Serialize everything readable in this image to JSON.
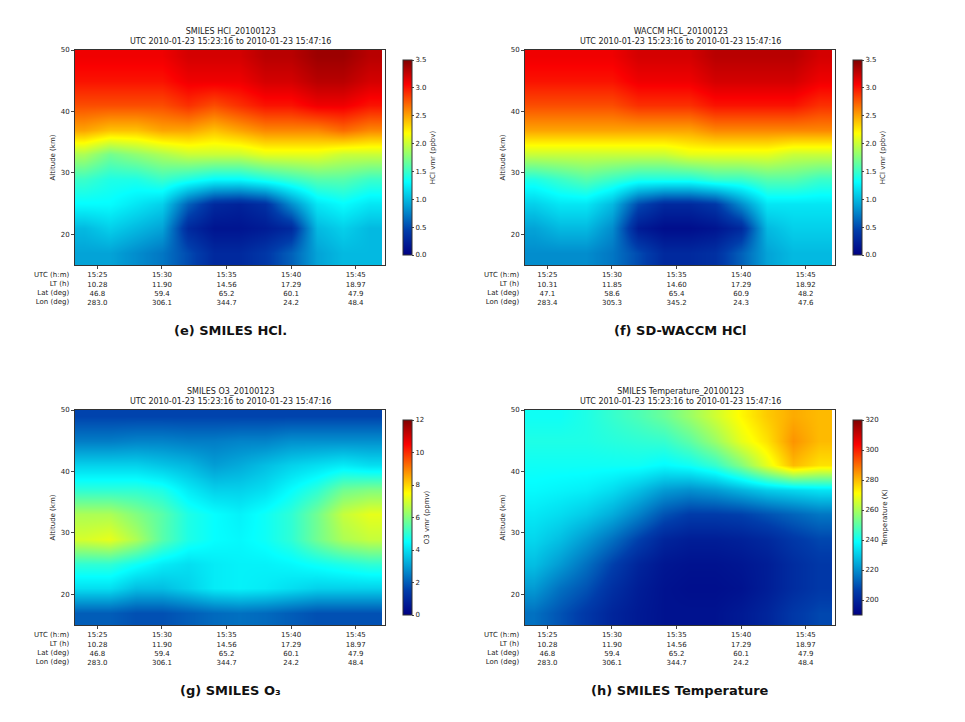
{
  "chart_data": [
    {
      "type": "heatmap",
      "title": "SMILES HCl_20100123",
      "subtitle": "UTC 2010-01-23 15:23:16 to 2010-01-23 15:47:16",
      "caption": "(e) SMILES HCl.",
      "y_label": "Altitude (km)",
      "x_label": [
        "UTC (h:m)",
        "LT (h)",
        "Lat (deg)",
        "Lon (deg)"
      ],
      "color": "jet",
      "x": [
        "2010-01-23 15:24",
        "2010-01-23 15:26",
        "2010-01-23 15:28",
        "2010-01-23 15:30",
        "2010-01-23 15:32",
        "2010-01-23 15:34",
        "2010-01-23 15:36",
        "2010-01-23 15:38",
        "2010-01-23 15:40",
        "2010-01-23 15:42",
        "2010-01-23 15:44",
        "2010-01-23 15:46"
      ],
      "y": [
        17,
        21,
        25,
        29,
        33,
        37,
        41,
        45,
        49
      ],
      "z": [
        [
          0.9,
          0.9,
          0.8,
          0.7,
          0.5,
          0.3,
          0.3,
          0.4,
          0.6,
          0.9,
          1.0,
          1.0
        ],
        [
          1.0,
          1.1,
          1.0,
          0.9,
          0.3,
          0.15,
          0.15,
          0.2,
          0.3,
          1.0,
          1.1,
          1.0
        ],
        [
          1.3,
          1.3,
          1.2,
          1.1,
          0.6,
          0.3,
          0.25,
          0.35,
          0.8,
          1.2,
          1.3,
          1.2
        ],
        [
          1.5,
          1.4,
          1.4,
          1.5,
          1.4,
          1.3,
          1.3,
          1.4,
          1.5,
          1.6,
          1.6,
          1.5
        ],
        [
          1.9,
          1.7,
          1.8,
          1.9,
          2.0,
          2.0,
          2.0,
          2.1,
          2.1,
          2.1,
          2.0,
          2.0
        ],
        [
          2.5,
          2.4,
          2.4,
          2.5,
          2.5,
          2.4,
          2.5,
          2.6,
          2.6,
          2.6,
          2.7,
          2.6
        ],
        [
          2.8,
          2.8,
          2.8,
          2.8,
          2.9,
          2.8,
          2.9,
          3.0,
          3.0,
          3.1,
          3.1,
          3.0
        ],
        [
          3.0,
          3.0,
          3.0,
          3.0,
          3.1,
          3.1,
          3.1,
          3.2,
          3.2,
          3.3,
          3.3,
          3.2
        ],
        [
          3.1,
          3.1,
          3.1,
          3.1,
          3.2,
          3.2,
          3.2,
          3.3,
          3.3,
          3.4,
          3.4,
          3.3
        ]
      ],
      "xlim": [
        "2010-01-23 15:23:16",
        "2010-01-23 15:47:16"
      ],
      "xticks": [
        {
          "value": "2010-01-23 15:25",
          "label": "15:25\n10.28\n46.8\n283.0"
        },
        {
          "value": "2010-01-23 15:30",
          "label": "15:30\n11.90\n59.4\n306.1"
        },
        {
          "value": "2010-01-23 15:35",
          "label": "15:35\n14.56\n65.2\n344.7"
        },
        {
          "value": "2010-01-23 15:40",
          "label": "15:40\n17.29\n60.1\n24.2"
        },
        {
          "value": "2010-01-23 15:45",
          "label": "15:45\n18.97\n47.9\n48.4"
        }
      ],
      "ylim": [
        15,
        50
      ],
      "yticks": [
        20,
        30,
        40,
        50
      ],
      "zlabel": "HCl vmr (ppbv)",
      "zlim": [
        0,
        3.5
      ],
      "zticks": [
        {
          "value": 0,
          "label": "0.0"
        },
        0.5,
        {
          "value": 1,
          "label": "1.0"
        },
        1.5,
        {
          "value": 2,
          "label": "2.0"
        },
        2.5,
        {
          "value": 3,
          "label": "3.0"
        },
        3.5
      ]
    },
    {
      "type": "heatmap",
      "title": "WACCM HCL_20100123",
      "subtitle": "UTC 2010-01-23 15:23:16 to 2010-01-23 15:47:16",
      "caption": "(f) SD-WACCM HCl",
      "y_label": "Altitude (km)",
      "x_label": [
        "UTC (h:m)",
        "LT (h)",
        "Lat (deg)",
        "Lon (deg)"
      ],
      "color": "jet",
      "x": [
        "2010-01-23 15:24",
        "2010-01-23 15:26",
        "2010-01-23 15:28",
        "2010-01-23 15:30",
        "2010-01-23 15:32",
        "2010-01-23 15:34",
        "2010-01-23 15:36",
        "2010-01-23 15:38",
        "2010-01-23 15:40",
        "2010-01-23 15:42",
        "2010-01-23 15:44",
        "2010-01-23 15:46"
      ],
      "y": [
        17,
        21,
        25,
        29,
        33,
        37,
        41,
        45,
        49
      ],
      "z": [
        [
          0.8,
          0.8,
          0.8,
          0.7,
          0.5,
          0.3,
          0.3,
          0.35,
          0.6,
          0.9,
          1.0,
          1.0
        ],
        [
          0.9,
          1.0,
          1.0,
          0.8,
          0.2,
          0.1,
          0.1,
          0.15,
          0.3,
          1.0,
          1.1,
          1.1
        ],
        [
          1.1,
          1.2,
          1.2,
          1.0,
          0.5,
          0.3,
          0.3,
          0.4,
          0.8,
          1.2,
          1.2,
          1.2
        ],
        [
          1.4,
          1.5,
          1.6,
          1.5,
          1.4,
          1.4,
          1.4,
          1.5,
          1.5,
          1.6,
          1.6,
          1.5
        ],
        [
          2.0,
          2.0,
          2.0,
          2.0,
          2.0,
          2.0,
          2.1,
          2.1,
          2.1,
          2.1,
          2.0,
          2.0
        ],
        [
          2.5,
          2.5,
          2.5,
          2.5,
          2.5,
          2.5,
          2.5,
          2.6,
          2.6,
          2.6,
          2.6,
          2.6
        ],
        [
          2.8,
          2.8,
          2.8,
          2.8,
          2.9,
          2.9,
          2.9,
          3.0,
          3.0,
          3.0,
          3.0,
          2.9
        ],
        [
          3.0,
          3.0,
          3.0,
          3.0,
          3.1,
          3.1,
          3.1,
          3.2,
          3.2,
          3.2,
          3.2,
          3.1
        ],
        [
          3.1,
          3.1,
          3.1,
          3.1,
          3.2,
          3.2,
          3.2,
          3.3,
          3.3,
          3.3,
          3.3,
          3.2
        ]
      ],
      "xlim": [
        "2010-01-23 15:23:16",
        "2010-01-23 15:47:16"
      ],
      "xticks": [
        {
          "value": "2010-01-23 15:25",
          "label": "15:25\n10.31\n47.1\n283.4"
        },
        {
          "value": "2010-01-23 15:30",
          "label": "15:30\n11.85\n58.6\n305.3"
        },
        {
          "value": "2010-01-23 15:35",
          "label": "15:35\n14.60\n65.4\n345.2"
        },
        {
          "value": "2010-01-23 15:40",
          "label": "15:40\n17.29\n60.9\n24.3"
        },
        {
          "value": "2010-01-23 15:45",
          "label": "15:45\n18.92\n48.2\n47.6"
        }
      ],
      "ylim": [
        15,
        50
      ],
      "yticks": [
        20,
        30,
        40,
        50
      ],
      "zlabel": "HCl vmr (ppbv)",
      "zlim": [
        0,
        3.5
      ],
      "zticks": [
        {
          "value": 0,
          "label": "0.0"
        },
        0.5,
        {
          "value": 1,
          "label": "1.0"
        },
        1.5,
        {
          "value": 2,
          "label": "2.0"
        },
        2.5,
        {
          "value": 3,
          "label": "3.0"
        },
        3.5
      ]
    },
    {
      "type": "heatmap",
      "title": "SMILES O3_20100123",
      "subtitle": "UTC 2010-01-23 15:23:16 to 2010-01-23 15:47:16",
      "caption": "(g) SMILES O₃",
      "y_label": "Altitude (km)",
      "x_label": [
        "UTC (h:m)",
        "LT (h)",
        "Lat (deg)",
        "Lon (deg)"
      ],
      "color": "jet",
      "x": [
        "2010-01-23 15:24",
        "2010-01-23 15:26",
        "2010-01-23 15:28",
        "2010-01-23 15:30",
        "2010-01-23 15:32",
        "2010-01-23 15:34",
        "2010-01-23 15:36",
        "2010-01-23 15:38",
        "2010-01-23 15:40",
        "2010-01-23 15:42",
        "2010-01-23 15:44",
        "2010-01-23 15:46"
      ],
      "y": [
        17,
        21,
        25,
        29,
        33,
        37,
        41,
        45,
        49
      ],
      "z": [
        [
          2.0,
          2.0,
          1.8,
          1.8,
          2.0,
          2.2,
          2.3,
          2.2,
          2.0,
          1.8,
          1.8,
          1.8
        ],
        [
          4.0,
          4.0,
          3.5,
          3.5,
          3.8,
          4.2,
          4.3,
          4.2,
          4.0,
          3.8,
          3.8,
          3.8
        ],
        [
          5.0,
          5.0,
          4.6,
          4.2,
          4.0,
          4.2,
          4.3,
          4.3,
          4.4,
          4.6,
          4.8,
          5.0
        ],
        [
          7.0,
          7.2,
          6.5,
          5.5,
          4.8,
          4.5,
          4.4,
          4.6,
          5.0,
          5.8,
          6.5,
          6.8
        ],
        [
          6.5,
          6.5,
          6.0,
          5.5,
          4.8,
          4.5,
          4.3,
          4.6,
          5.0,
          5.8,
          6.8,
          7.2
        ],
        [
          5.0,
          5.0,
          5.0,
          4.8,
          4.2,
          3.8,
          3.8,
          4.0,
          4.5,
          5.0,
          5.8,
          6.0
        ],
        [
          3.8,
          3.8,
          3.8,
          3.6,
          3.4,
          3.0,
          3.2,
          3.5,
          3.8,
          4.0,
          4.2,
          4.0
        ],
        [
          2.5,
          2.5,
          2.6,
          2.6,
          2.5,
          2.5,
          2.6,
          2.6,
          2.8,
          2.8,
          2.8,
          2.8
        ],
        [
          1.6,
          1.6,
          1.6,
          1.6,
          1.6,
          1.6,
          1.6,
          1.6,
          1.6,
          1.6,
          1.6,
          1.6
        ]
      ],
      "xlim": [
        "2010-01-23 15:23:16",
        "2010-01-23 15:47:16"
      ],
      "xticks": [
        {
          "value": "2010-01-23 15:25",
          "label": "15:25\n10.28\n46.8\n283.0"
        },
        {
          "value": "2010-01-23 15:30",
          "label": "15:30\n11.90\n59.4\n306.1"
        },
        {
          "value": "2010-01-23 15:35",
          "label": "15:35\n14.56\n65.2\n344.7"
        },
        {
          "value": "2010-01-23 15:40",
          "label": "15:40\n17.29\n60.1\n24.2"
        },
        {
          "value": "2010-01-23 15:45",
          "label": "15:45\n18.97\n47.9\n48.4"
        }
      ],
      "ylim": [
        15,
        50
      ],
      "yticks": [
        20,
        30,
        40,
        50
      ],
      "zlabel": "O3 vmr (ppmv)",
      "zlim": [
        0,
        12
      ],
      "zticks": [
        0,
        2,
        4,
        6,
        8,
        10,
        12
      ]
    },
    {
      "type": "heatmap",
      "title": "SMILES Temperature_20100123",
      "subtitle": "UTC 2010-01-23 15:23:16 to 2010-01-23 15:47:16",
      "caption": "(h) SMILES Temperature",
      "y_label": "Altitude (km)",
      "x_label": [
        "UTC (h:m)",
        "LT (h)",
        "Lat (deg)",
        "Lon (deg)"
      ],
      "color": "jet",
      "x": [
        "2010-01-23 15:24",
        "2010-01-23 15:26",
        "2010-01-23 15:28",
        "2010-01-23 15:30",
        "2010-01-23 15:32",
        "2010-01-23 15:34",
        "2010-01-23 15:36",
        "2010-01-23 15:38",
        "2010-01-23 15:40",
        "2010-01-23 15:42",
        "2010-01-23 15:44",
        "2010-01-23 15:46"
      ],
      "y": [
        17,
        21,
        25,
        29,
        33,
        37,
        41,
        45,
        49
      ],
      "z": [
        [
          215,
          210,
          205,
          200,
          197,
          195,
          195,
          195,
          197,
          200,
          205,
          208
        ],
        [
          222,
          215,
          210,
          203,
          198,
          195,
          194,
          194,
          195,
          198,
          202,
          205
        ],
        [
          228,
          222,
          215,
          207,
          200,
          196,
          195,
          195,
          196,
          198,
          202,
          205
        ],
        [
          232,
          228,
          222,
          215,
          207,
          200,
          198,
          198,
          199,
          201,
          205,
          208
        ],
        [
          235,
          233,
          230,
          225,
          218,
          210,
          206,
          206,
          207,
          210,
          213,
          216
        ],
        [
          238,
          237,
          236,
          233,
          228,
          222,
          220,
          222,
          226,
          230,
          232,
          234
        ],
        [
          240,
          240,
          240,
          240,
          240,
          238,
          240,
          245,
          255,
          268,
          280,
          275
        ],
        [
          242,
          242,
          242,
          243,
          244,
          245,
          250,
          258,
          268,
          275,
          285,
          280
        ],
        [
          240,
          240,
          242,
          245,
          248,
          252,
          258,
          265,
          272,
          278,
          282,
          280
        ]
      ],
      "xlim": [
        "2010-01-23 15:23:16",
        "2010-01-23 15:47:16"
      ],
      "xticks": [
        {
          "value": "2010-01-23 15:25",
          "label": "15:25\n10.28\n46.8\n283.0"
        },
        {
          "value": "2010-01-23 15:30",
          "label": "15:30\n11.90\n59.4\n306.1"
        },
        {
          "value": "2010-01-23 15:35",
          "label": "15:35\n14.56\n65.2\n344.7"
        },
        {
          "value": "2010-01-23 15:40",
          "label": "15:40\n17.29\n60.1\n24.2"
        },
        {
          "value": "2010-01-23 15:45",
          "label": "15:45\n18.97\n47.9\n48.4"
        }
      ],
      "ylim": [
        15,
        50
      ],
      "yticks": [
        20,
        30,
        40,
        50
      ],
      "zlabel": "Temperature (K)",
      "zlim": [
        190,
        320
      ],
      "zticks": [
        200,
        220,
        240,
        260,
        280,
        300,
        320
      ]
    }
  ]
}
